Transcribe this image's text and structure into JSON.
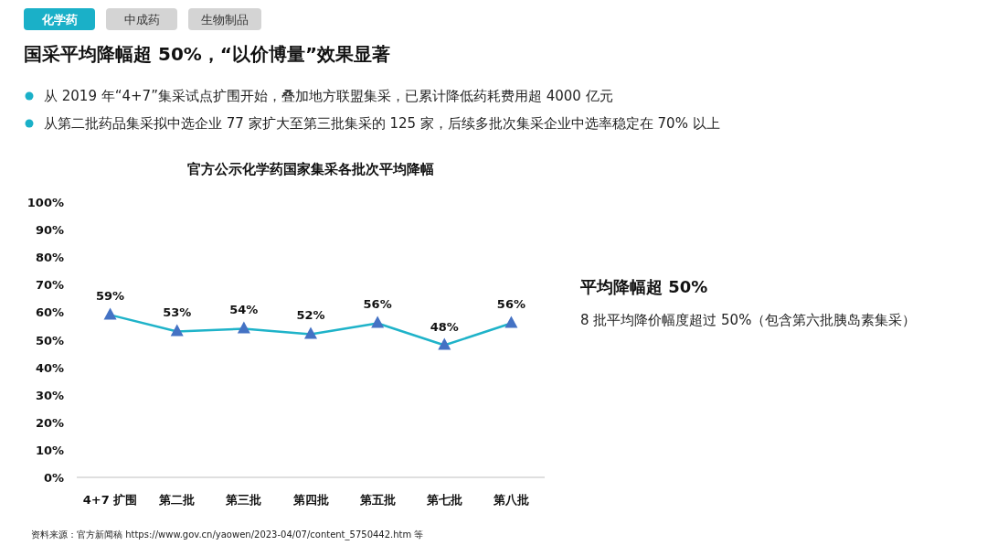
{
  "chart_data": {
    "type": "line",
    "title": "官方公示化学药国家集采各批次平均降幅",
    "annotations": [
      "化学药",
      "中成药",
      "生物制品",
      "国采平均降幅超 50%，“以价博量”效果显著",
      "从 2019 年“4+7”集采试点扩围开始，叠加地方联盟集采，已累计降低药耗费用超 4000 亿元",
      "从第二批药品集采拟中选企业 77 家扩大至第三批集采的 125 家，后续多批次集采企业中选率稳定在 70% 以上",
      "平均降幅超 50%",
      "8 批平均降价幅度超过 50%（包含第六批胰岛素集采）",
      "资料来源：官方新闻稿 https://www.gov.cn/yaowen/2023-04/07/content_5750442.htm 等"
    ],
    "categories": [
      "4+7 扩围",
      "第二批",
      "第三批",
      "第四批",
      "第五批",
      "第七批",
      "第八批"
    ],
    "series": [
      {
        "color": "#1fb3c9",
        "values": [
          59,
          53,
          54,
          52,
          56,
          48,
          56
        ],
        "value_labels": [
          "59%",
          "53%",
          "54%",
          "52%",
          "56%",
          "48%",
          "56%"
        ]
      }
    ],
    "marker": "triangle",
    "grid": false,
    "ylim": [
      0,
      100
    ],
    "yticks": [
      {
        "value": 0,
        "label": "0%"
      },
      {
        "value": 10,
        "label": "10%"
      },
      {
        "value": 20,
        "label": "20%"
      },
      {
        "value": 30,
        "label": "30%"
      },
      {
        "value": 40,
        "label": "40%"
      },
      {
        "value": 50,
        "label": "50%"
      },
      {
        "value": 60,
        "label": "60%"
      },
      {
        "value": 70,
        "label": "70%"
      },
      {
        "value": 80,
        "label": "80%"
      },
      {
        "value": 90,
        "label": "90%"
      },
      {
        "value": 100,
        "label": "100%"
      }
    ]
  }
}
